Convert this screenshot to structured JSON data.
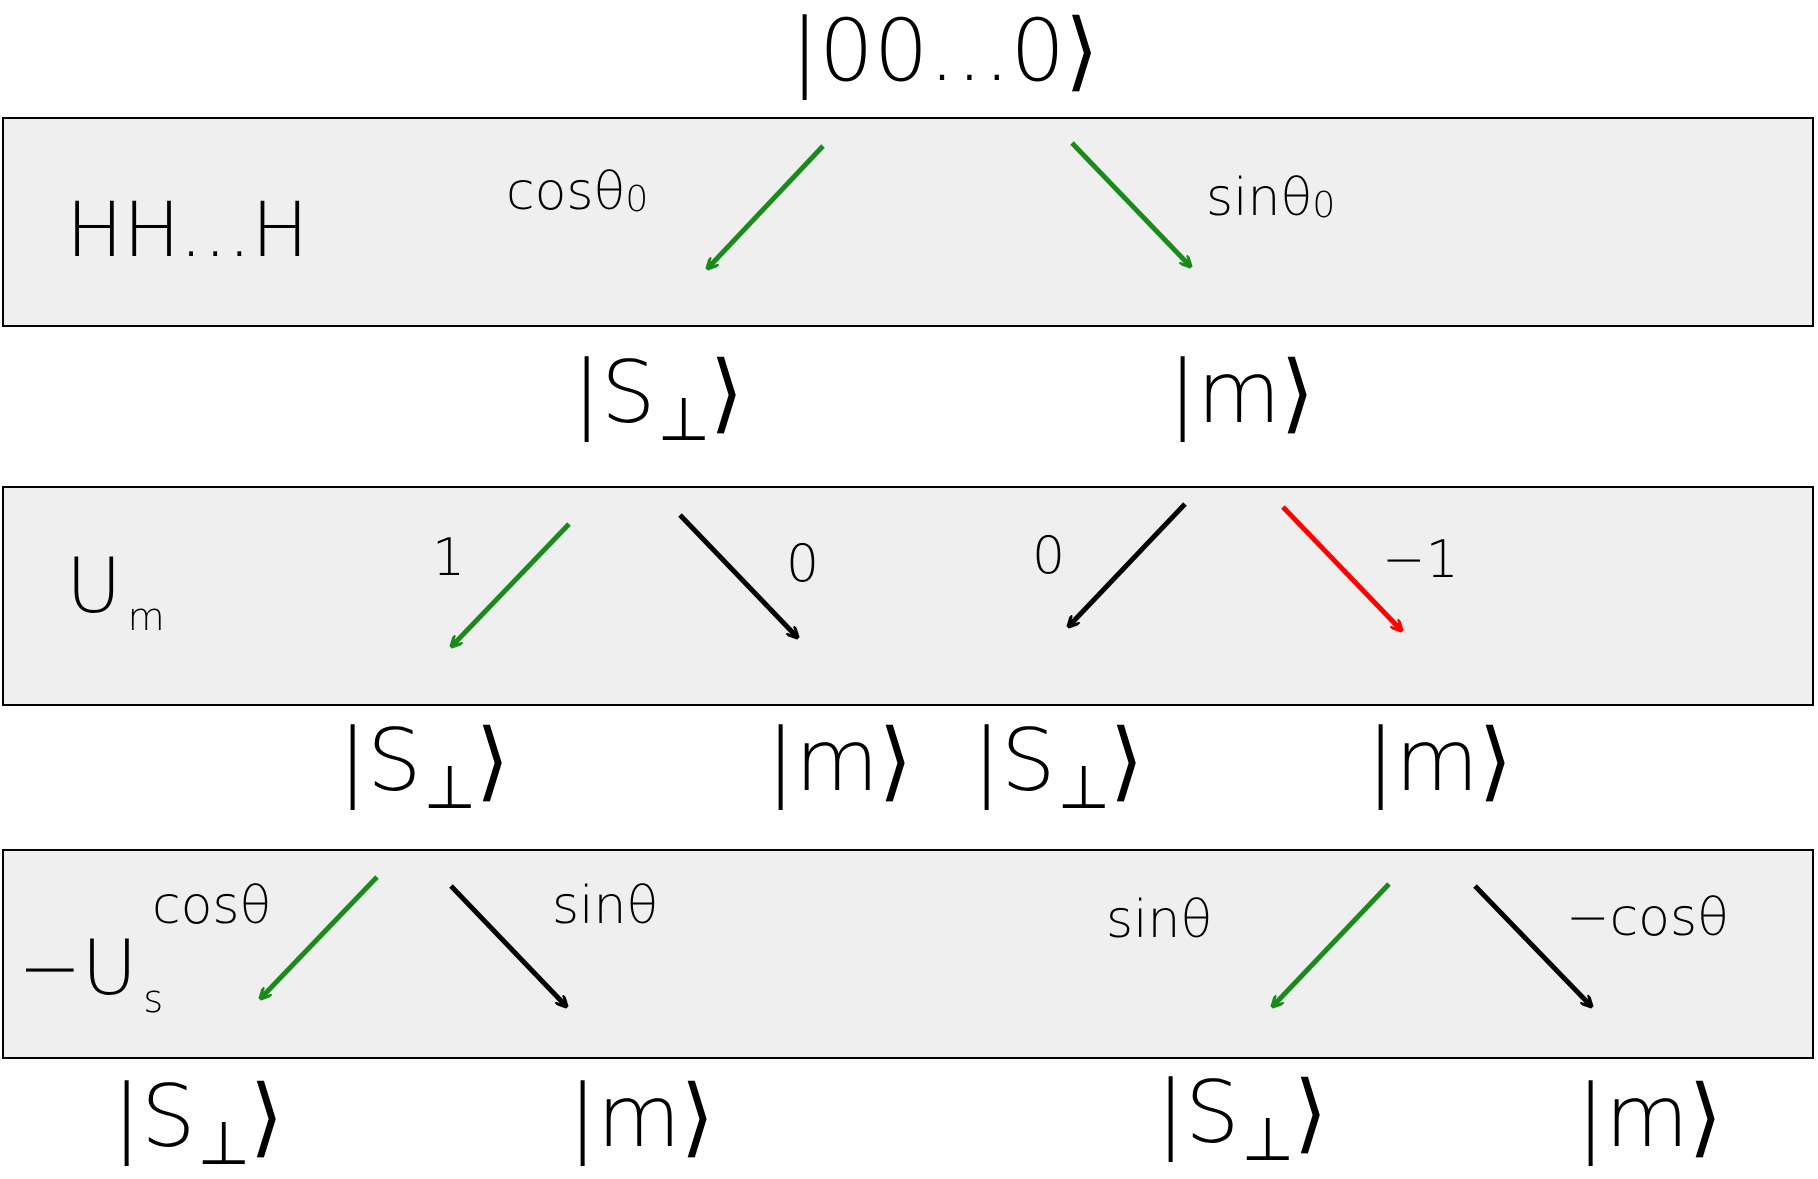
{
  "top_state": "|00...0⟩",
  "colors": {
    "positive": "#1a8a1a",
    "neutral": "#000000",
    "negative": "#ff0000",
    "band": "#efefef"
  },
  "stages": [
    {
      "operator": "HH...H",
      "amplitudes": {
        "left_main": "cosθ",
        "left_sub": "0",
        "right_main": "sinθ",
        "right_sub": "0"
      },
      "outputs": [
        "|S⊥⟩",
        "|m⟩"
      ]
    },
    {
      "operator_main": "U",
      "operator_sub": "m",
      "amplitudes": [
        "1",
        "0",
        "0",
        "−1"
      ],
      "outputs": [
        "|S⊥⟩",
        "|m⟩",
        "|S⊥⟩",
        "|m⟩"
      ]
    },
    {
      "operator_main": "−U",
      "operator_sub": "s",
      "amplitudes": [
        "cosθ",
        "sinθ",
        "sinθ",
        "−cosθ"
      ],
      "outputs": [
        "|S⊥⟩",
        "|m⟩",
        "|S⊥⟩",
        "|m⟩"
      ]
    }
  ],
  "ket_parts": {
    "s_prefix": "|S",
    "perp": "⊥",
    "close": "⟩"
  }
}
